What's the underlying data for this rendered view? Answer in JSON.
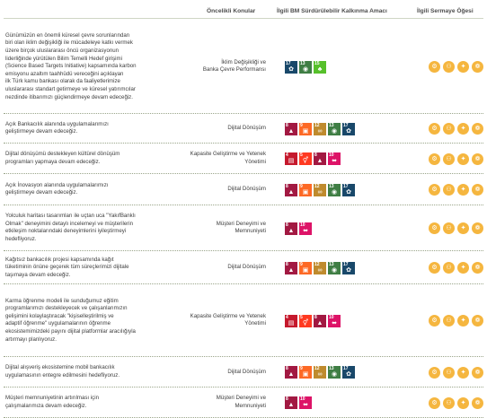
{
  "header": {
    "col_priority": "Öncelikli Konular",
    "col_sdg": "İlgili BM Sürdürülebilir Kalkınma Amacı",
    "col_capital": "İlgili Sermaye Öğesi"
  },
  "sdg_colors": {
    "4": "#c5192d",
    "5": "#ff3a21",
    "8": "#a21942",
    "9": "#fd6925",
    "10": "#dd1367",
    "12": "#bf8b2e",
    "13": "#3f7e44",
    "15": "#56c02b",
    "17": "#19486a"
  },
  "capital_color": "#f5b63f",
  "rows": [
    {
      "lines": [
        "Günümüzün en önemli küresel çevre sorunlarından",
        "biri olan iklim değişikliği ile mücadeleye katkı vermek",
        "üzere birçok uluslararası öncü organizasyonun",
        "liderliğinde yürütülen Bilim Temelli Hedef girişimi",
        "(Science Based Targets Initiative) kapsamında karbon",
        "emisyonu azaltım taahhüdü vereceğini açıklayan",
        "ilk Türk kamu bankası olarak da faaliyetlerimize",
        "uluslararası standart getirmeye ve küresel yatırımcılar",
        "nezdinde itibarımızı güçlendirmeye devam edeceğiz."
      ],
      "priority": [
        "İklim Değişikliği ve",
        "Banka Çevre Performansı"
      ],
      "sdgs": [
        {
          "n": "17",
          "i": "✿"
        },
        {
          "n": "13",
          "i": "◉"
        },
        {
          "n": "15",
          "i": "♣"
        }
      ],
      "caps": 4
    },
    {
      "lines": [
        "Açık Bankacılık alanında uygulamalarımızı",
        "geliştirmeye devam edeceğiz."
      ],
      "priority": [
        "Dijital Dönüşüm"
      ],
      "sdgs": [
        {
          "n": "8",
          "i": "▲"
        },
        {
          "n": "9",
          "i": "▣"
        },
        {
          "n": "12",
          "i": "∞"
        },
        {
          "n": "13",
          "i": "◉"
        },
        {
          "n": "17",
          "i": "✿"
        }
      ],
      "caps": 4
    },
    {
      "lines": [
        "Dijital dönüşümü destekleyen kültürel dönüşüm",
        "programları yapmaya devam edeceğiz."
      ],
      "priority": [
        "Kapasite Geliştirme ve Yetenek",
        "Yönetimi"
      ],
      "sdgs": [
        {
          "n": "4",
          "i": "▤"
        },
        {
          "n": "5",
          "i": "⚥"
        },
        {
          "n": "8",
          "i": "▲"
        },
        {
          "n": "10",
          "i": "⬌"
        }
      ],
      "caps": 4
    },
    {
      "lines": [
        "Açık İnovasyon alanında uygulamalarımızı",
        "geliştirmeye devam edeceğiz."
      ],
      "priority": [
        "Dijital Dönüşüm"
      ],
      "sdgs": [
        {
          "n": "8",
          "i": "▲"
        },
        {
          "n": "9",
          "i": "▣"
        },
        {
          "n": "12",
          "i": "∞"
        },
        {
          "n": "13",
          "i": "◉"
        },
        {
          "n": "17",
          "i": "✿"
        }
      ],
      "caps": 4
    },
    {
      "lines": [
        "Yolculuk haritası tasarımları ile uçtan uca \"YakıfBanklı",
        "Olmak\" deneyimini detaylı incelemeyi ve müşterilerin",
        "etkileşim noktalarındaki deneyimlerini iyileştirmeyi",
        "hedefliyoruz."
      ],
      "priority": [
        "Müşteri Deneyimi ve",
        "Memnuniyeti"
      ],
      "sdgs": [
        {
          "n": "8",
          "i": "▲"
        },
        {
          "n": "10",
          "i": "⬌"
        }
      ],
      "caps": 4
    },
    {
      "lines": [
        "Kağıtsız bankacılık projesi kapsamında kağıt",
        "tüketiminin önüne geçerek tüm süreçlerimizi dijitale",
        "taşımaya devam edeceğiz."
      ],
      "priority": [
        "Dijital Dönüşüm"
      ],
      "sdgs": [
        {
          "n": "8",
          "i": "▲"
        },
        {
          "n": "9",
          "i": "▣"
        },
        {
          "n": "12",
          "i": "∞"
        },
        {
          "n": "13",
          "i": "◉"
        },
        {
          "n": "17",
          "i": "✿"
        }
      ],
      "caps": 4
    },
    {
      "lines": [
        "Karma öğrenme modeli ile sunduğumuz eğitim",
        "programlarımızı destekleyecek ve çalışanlarımızın",
        "gelişimini kolaylaştıracak \"kişiselleştirilmiş ve",
        "adaptif öğrenme\" uygulamalarının öğrenme",
        "ekosistemimizdeki payını dijital platformlar aracılığıyla",
        "artırmayı planlıyoruz."
      ],
      "priority": [
        "Kapasite Geliştirme ve Yetenek",
        "Yönetimi"
      ],
      "sdgs": [
        {
          "n": "4",
          "i": "▤"
        },
        {
          "n": "5",
          "i": "⚥"
        },
        {
          "n": "8",
          "i": "▲"
        },
        {
          "n": "10",
          "i": "⬌"
        }
      ],
      "caps": 4
    },
    {
      "lines": [
        "Dijital alışveriş ekosistemine mobil bankacılık",
        "uygulamasının entegre edilmesini hedefliyoruz."
      ],
      "priority": [
        "Dijital Dönüşüm"
      ],
      "sdgs": [
        {
          "n": "8",
          "i": "▲"
        },
        {
          "n": "9",
          "i": "▣"
        },
        {
          "n": "12",
          "i": "∞"
        },
        {
          "n": "13",
          "i": "◉"
        },
        {
          "n": "17",
          "i": "✿"
        }
      ],
      "caps": 4
    },
    {
      "lines": [
        "Müşteri memnuniyetinin artırılması için",
        "çalışmalarımıza devam edeceğiz."
      ],
      "priority": [
        "Müşteri Deneyimi ve",
        "Memnuniyeti"
      ],
      "sdgs": [
        {
          "n": "8",
          "i": "▲"
        },
        {
          "n": "10",
          "i": "⬌"
        }
      ],
      "caps": 4
    }
  ]
}
